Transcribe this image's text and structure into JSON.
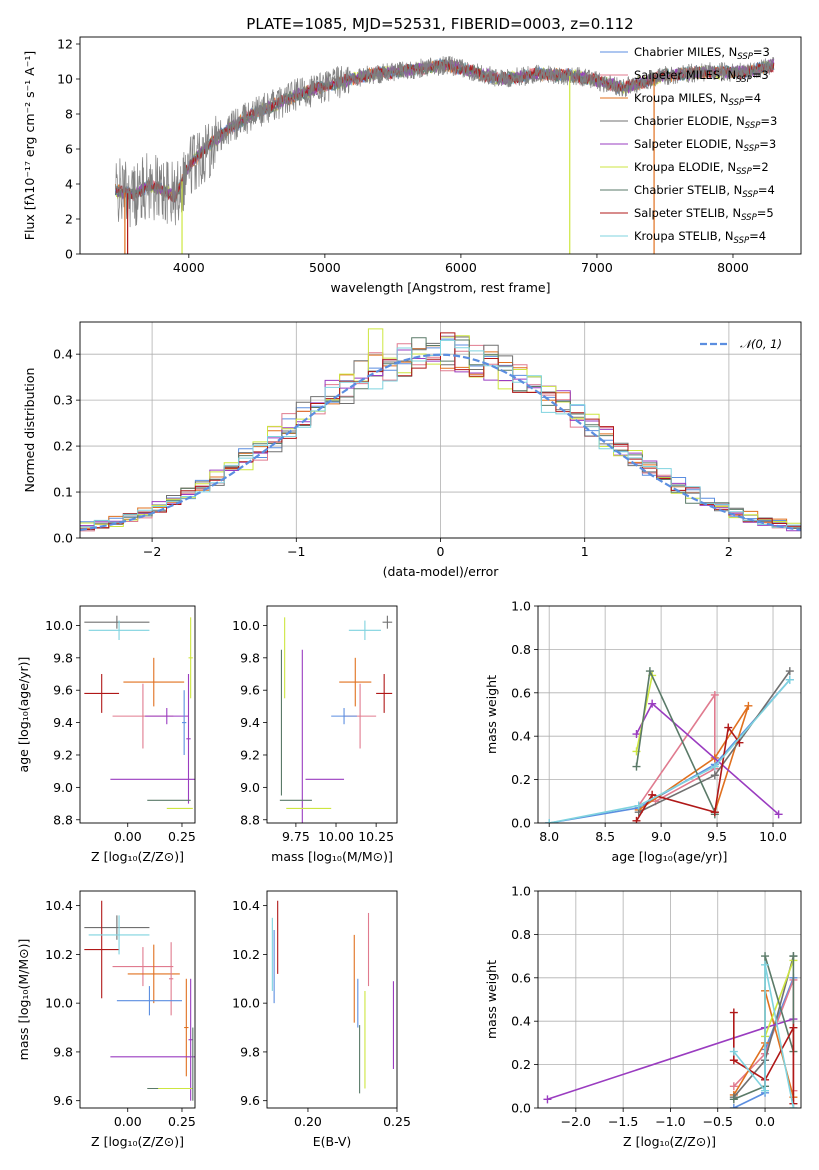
{
  "colors": {
    "chabrier_miles": "#5b8ee0",
    "salpeter_miles": "#e07b8f",
    "kroupa_miles": "#e0701f",
    "chabrier_elodie": "#707070",
    "salpeter_elodie": "#9a3cc0",
    "kroupa_elodie": "#cde640",
    "chabrier_stelib": "#5a7a68",
    "salpeter_stelib": "#b01818",
    "kroupa_stelib": "#7fd3df",
    "grid": "#b0b0b0",
    "normal": "#5b8ee0"
  },
  "chart_data": [
    {
      "id": "spectrum",
      "type": "line",
      "title": "PLATE=1085, MJD=52531, FIBERID=0003, z=0.112",
      "xlabel": "wavelength [Angstrom, rest frame]",
      "ylabel": "Flux [fλ10⁻¹⁷ erg cm⁻² s⁻¹ A⁻¹]",
      "xlim": [
        3200,
        8500
      ],
      "ylim": [
        0,
        12.4
      ],
      "xticks": [
        4000,
        5000,
        6000,
        7000,
        8000
      ],
      "yticks": [
        0,
        2,
        4,
        6,
        8,
        10,
        12
      ],
      "continuum": {
        "x": [
          3460,
          3600,
          3700,
          3800,
          3900,
          4000,
          4100,
          4300,
          4500,
          4800,
          5000,
          5300,
          5600,
          5900,
          6100,
          6300,
          6600,
          6900,
          7200,
          7500,
          7800,
          8100,
          8300
        ],
        "y": [
          3.6,
          3.4,
          3.9,
          3.7,
          3.3,
          5.0,
          5.9,
          7.2,
          8.1,
          9.1,
          9.6,
          10.2,
          10.5,
          10.8,
          10.4,
          10.0,
          10.3,
          10.1,
          9.5,
          10.2,
          10.4,
          10.4,
          10.8
        ]
      },
      "legend": [
        {
          "name": "Chabrier MILES, N",
          "sub": "SSP",
          "n": "=3"
        },
        {
          "name": "Salpeter MILES, N",
          "sub": "SSP",
          "n": "=3"
        },
        {
          "name": "Kroupa MILES, N",
          "sub": "SSP",
          "n": "=4"
        },
        {
          "name": "Chabrier ELODIE, N",
          "sub": "SSP",
          "n": "=3"
        },
        {
          "name": "Salpeter ELODIE, N",
          "sub": "SSP",
          "n": "=3"
        },
        {
          "name": "Kroupa ELODIE, N",
          "sub": "SSP",
          "n": "=2"
        },
        {
          "name": "Chabrier STELIB, N",
          "sub": "SSP",
          "n": "=4"
        },
        {
          "name": "Salpeter STELIB, N",
          "sub": "SSP",
          "n": "=5"
        },
        {
          "name": "Kroupa STELIB, N",
          "sub": "SSP",
          "n": "=4"
        }
      ]
    },
    {
      "id": "residuals",
      "type": "line",
      "xlabel": "(data-model)/error",
      "ylabel": "Normed distribution",
      "xlim": [
        -2.5,
        2.5
      ],
      "ylim": [
        0,
        0.47
      ],
      "xticks": [
        -2,
        -1,
        0,
        1,
        2
      ],
      "yticks": [
        0.0,
        0.1,
        0.2,
        0.3,
        0.4
      ],
      "legend_label": "𝒩(0, 1)",
      "legend_position": "top-right",
      "grid": true
    },
    {
      "id": "age_vs_z",
      "type": "scatter",
      "xlabel": "Z [log₁₀(Z/Z⊙)]",
      "ylabel": "age  [log₁₀(age/yr)]",
      "xlim": [
        -0.22,
        0.31
      ],
      "ylim": [
        8.78,
        10.12
      ],
      "xticks": [
        0.0,
        0.25
      ],
      "yticks": [
        8.8,
        9.0,
        9.2,
        9.4,
        9.6,
        9.8,
        10.0
      ],
      "points": [
        {
          "x": -0.05,
          "y": 10.02,
          "ex": 0.15,
          "ey": 0.04,
          "c": "chabrier_elodie"
        },
        {
          "x": -0.04,
          "y": 9.97,
          "ex": 0.14,
          "ey": 0.06,
          "c": "kroupa_stelib"
        },
        {
          "x": 0.12,
          "y": 9.65,
          "ex": 0.14,
          "ey": 0.15,
          "c": "kroupa_miles"
        },
        {
          "x": -0.12,
          "y": 9.58,
          "ex": 0.08,
          "ey": 0.12,
          "c": "salpeter_stelib"
        },
        {
          "x": 0.07,
          "y": 9.44,
          "ex": 0.14,
          "ey": 0.2,
          "c": "salpeter_miles"
        },
        {
          "x": 0.18,
          "y": 9.44,
          "ex": 0.1,
          "ey": 0.05,
          "c": "salpeter_elodie"
        },
        {
          "x": 0.29,
          "y": 9.8,
          "ex": 0.01,
          "ey": 0.25,
          "c": "kroupa_elodie"
        },
        {
          "x": 0.26,
          "y": 9.4,
          "ex": 0.01,
          "ey": 0.2,
          "c": "chabrier_miles"
        },
        {
          "x": 0.28,
          "y": 9.3,
          "ex": 0.01,
          "ey": 0.4,
          "c": "salpeter_elodie"
        },
        {
          "x": 0.12,
          "y": 9.05,
          "ex": 0.2,
          "ey": 0.0,
          "c": "salpeter_elodie"
        },
        {
          "x": 0.19,
          "y": 8.92,
          "ex": 0.1,
          "ey": 0.0,
          "c": "chabrier_stelib"
        },
        {
          "x": 0.24,
          "y": 8.87,
          "ex": 0.06,
          "ey": 0.0,
          "c": "kroupa_elodie"
        }
      ]
    },
    {
      "id": "age_vs_mass",
      "type": "scatter",
      "xlabel": "mass [log₁₀(M/M⊙)]",
      "xlim": [
        9.57,
        10.38
      ],
      "ylim": [
        8.78,
        10.12
      ],
      "xticks": [
        9.75,
        10.0,
        10.25
      ],
      "xticklabels": [
        "9.75",
        "10.00",
        "10.25"
      ],
      "yticks": [
        8.8,
        9.0,
        9.2,
        9.4,
        9.6,
        9.8,
        10.0
      ],
      "points": [
        {
          "x": 10.32,
          "y": 10.02,
          "ex": 0.03,
          "ey": 0.04,
          "c": "chabrier_elodie"
        },
        {
          "x": 10.18,
          "y": 9.97,
          "ex": 0.1,
          "ey": 0.06,
          "c": "kroupa_stelib"
        },
        {
          "x": 10.12,
          "y": 9.65,
          "ex": 0.1,
          "ey": 0.15,
          "c": "kroupa_miles"
        },
        {
          "x": 10.3,
          "y": 9.58,
          "ex": 0.05,
          "ey": 0.12,
          "c": "salpeter_stelib"
        },
        {
          "x": 10.15,
          "y": 9.44,
          "ex": 0.1,
          "ey": 0.2,
          "c": "salpeter_miles"
        },
        {
          "x": 10.05,
          "y": 9.44,
          "ex": 0.08,
          "ey": 0.05,
          "c": "chabrier_miles"
        },
        {
          "x": 9.68,
          "y": 9.8,
          "ex": 0.0,
          "ey": 0.25,
          "c": "kroupa_elodie"
        },
        {
          "x": 9.66,
          "y": 9.4,
          "ex": 0.0,
          "ey": 0.45,
          "c": "chabrier_stelib"
        },
        {
          "x": 9.79,
          "y": 9.3,
          "ex": 0.0,
          "ey": 0.55,
          "c": "salpeter_elodie"
        },
        {
          "x": 9.93,
          "y": 9.05,
          "ex": 0.12,
          "ey": 0.0,
          "c": "salpeter_elodie"
        },
        {
          "x": 9.75,
          "y": 8.92,
          "ex": 0.1,
          "ey": 0.0,
          "c": "chabrier_stelib"
        },
        {
          "x": 9.83,
          "y": 8.87,
          "ex": 0.14,
          "ey": 0.0,
          "c": "kroupa_elodie"
        }
      ]
    },
    {
      "id": "weight_vs_age",
      "type": "line",
      "xlabel": "age  [log₁₀(age/yr)]",
      "ylabel": "mass weight",
      "xlim": [
        7.9,
        10.25
      ],
      "ylim": [
        0,
        1.0
      ],
      "xticks": [
        8.0,
        8.5,
        9.0,
        9.5,
        10.0
      ],
      "yticks": [
        0.0,
        0.2,
        0.4,
        0.6,
        0.8,
        1.0
      ],
      "series": [
        {
          "c": "chabrier_miles",
          "x": [
            8.0,
            8.8,
            9.48,
            10.15
          ],
          "y": [
            0.0,
            0.07,
            0.27,
            0.66
          ]
        },
        {
          "c": "salpeter_miles",
          "x": [
            8.8,
            9.48,
            9.48,
            8.95
          ],
          "y": [
            0.08,
            0.59,
            0.25,
            0.1
          ]
        },
        {
          "c": "kroupa_miles",
          "x": [
            8.8,
            9.48,
            9.78,
            9.48
          ],
          "y": [
            0.06,
            0.3,
            0.54,
            0.05
          ]
        },
        {
          "c": "chabrier_elodie",
          "x": [
            8.8,
            9.48,
            10.15
          ],
          "y": [
            0.05,
            0.22,
            0.7
          ]
        },
        {
          "c": "salpeter_elodie",
          "x": [
            8.78,
            8.92,
            10.05
          ],
          "y": [
            0.41,
            0.55,
            0.04
          ]
        },
        {
          "c": "kroupa_elodie",
          "x": [
            8.78,
            8.92
          ],
          "y": [
            0.33,
            0.68
          ]
        },
        {
          "c": "chabrier_stelib",
          "x": [
            8.78,
            8.9,
            9.48,
            9.48
          ],
          "y": [
            0.26,
            0.7,
            0.05,
            0.04
          ]
        },
        {
          "c": "salpeter_stelib",
          "x": [
            8.78,
            8.92,
            9.48,
            9.6,
            9.7
          ],
          "y": [
            0.01,
            0.13,
            0.05,
            0.44,
            0.37
          ]
        },
        {
          "c": "kroupa_stelib",
          "x": [
            8.0,
            8.8,
            9.48,
            10.15
          ],
          "y": [
            0.0,
            0.08,
            0.26,
            0.66
          ]
        }
      ]
    },
    {
      "id": "mass_vs_z",
      "type": "scatter",
      "xlabel": "Z [log₁₀(Z/Z⊙)]",
      "ylabel": "mass [log₁₀(M/M⊙)]",
      "xlim": [
        -0.22,
        0.31
      ],
      "ylim": [
        9.57,
        10.46
      ],
      "xticks": [
        0.0,
        0.25
      ],
      "yticks": [
        9.6,
        9.8,
        10.0,
        10.2,
        10.4
      ],
      "points": [
        {
          "x": -0.05,
          "y": 10.31,
          "ex": 0.15,
          "ey": 0.05,
          "c": "chabrier_elodie"
        },
        {
          "x": -0.12,
          "y": 10.22,
          "ex": 0.08,
          "ey": 0.2,
          "c": "salpeter_stelib"
        },
        {
          "x": -0.04,
          "y": 10.28,
          "ex": 0.14,
          "ey": 0.08,
          "c": "kroupa_stelib"
        },
        {
          "x": 0.07,
          "y": 10.15,
          "ex": 0.14,
          "ey": 0.08,
          "c": "salpeter_miles"
        },
        {
          "x": 0.12,
          "y": 10.12,
          "ex": 0.12,
          "ey": 0.12,
          "c": "kroupa_miles"
        },
        {
          "x": 0.2,
          "y": 10.1,
          "ex": 0.01,
          "ey": 0.15,
          "c": "salpeter_miles"
        },
        {
          "x": 0.1,
          "y": 10.01,
          "ex": 0.15,
          "ey": 0.06,
          "c": "chabrier_miles"
        },
        {
          "x": 0.29,
          "y": 9.85,
          "ex": 0.01,
          "ey": 0.25,
          "c": "salpeter_elodie"
        },
        {
          "x": 0.27,
          "y": 9.9,
          "ex": 0.01,
          "ey": 0.2,
          "c": "kroupa_miles"
        },
        {
          "x": 0.12,
          "y": 9.78,
          "ex": 0.2,
          "ey": 0.0,
          "c": "salpeter_elodie"
        },
        {
          "x": 0.19,
          "y": 9.65,
          "ex": 0.1,
          "ey": 0.0,
          "c": "chabrier_stelib"
        },
        {
          "x": 0.22,
          "y": 9.65,
          "ex": 0.08,
          "ey": 0.0,
          "c": "kroupa_elodie"
        },
        {
          "x": 0.3,
          "y": 9.75,
          "ex": 0.0,
          "ey": 0.15,
          "c": "chabrier_stelib"
        }
      ]
    },
    {
      "id": "mass_vs_ebv",
      "type": "scatter",
      "xlabel": "E(B-V)",
      "xlim": [
        0.177,
        0.25
      ],
      "ylim": [
        9.57,
        10.46
      ],
      "xticks": [
        0.2,
        0.25
      ],
      "xticklabels": [
        "0.20",
        "0.25"
      ],
      "yticks": [
        9.6,
        9.8,
        10.0,
        10.2,
        10.4
      ],
      "points": [
        {
          "x": 0.18,
          "y": 10.2,
          "ex": 0.0,
          "ey": 0.15,
          "c": "kroupa_stelib"
        },
        {
          "x": 0.183,
          "y": 10.27,
          "ex": 0.0,
          "ey": 0.15,
          "c": "salpeter_stelib"
        },
        {
          "x": 0.181,
          "y": 10.15,
          "ex": 0.0,
          "ey": 0.15,
          "c": "chabrier_miles"
        },
        {
          "x": 0.226,
          "y": 10.1,
          "ex": 0.0,
          "ey": 0.18,
          "c": "kroupa_miles"
        },
        {
          "x": 0.228,
          "y": 10.0,
          "ex": 0.0,
          "ey": 0.1,
          "c": "chabrier_miles"
        },
        {
          "x": 0.234,
          "y": 10.22,
          "ex": 0.0,
          "ey": 0.15,
          "c": "salpeter_miles"
        },
        {
          "x": 0.229,
          "y": 9.77,
          "ex": 0.0,
          "ey": 0.14,
          "c": "chabrier_stelib"
        },
        {
          "x": 0.232,
          "y": 9.85,
          "ex": 0.0,
          "ey": 0.2,
          "c": "kroupa_elodie"
        },
        {
          "x": 0.248,
          "y": 9.91,
          "ex": 0.0,
          "ey": 0.18,
          "c": "salpeter_elodie"
        }
      ]
    },
    {
      "id": "weight_vs_z",
      "type": "line",
      "xlabel": "Z [log₁₀(Z/Z⊙)]",
      "ylabel": "mass weight",
      "xlim": [
        -2.4,
        0.38
      ],
      "ylim": [
        0,
        1.0
      ],
      "xticks": [
        -2.0,
        -1.5,
        -1.0,
        -0.5,
        0.0
      ],
      "yticks": [
        0.0,
        0.2,
        0.4,
        0.6,
        0.8,
        1.0
      ],
      "series": [
        {
          "c": "chabrier_miles",
          "x": [
            -0.33,
            0.0,
            0.0,
            0.3
          ],
          "y": [
            0.0,
            0.07,
            0.27,
            0.6
          ]
        },
        {
          "c": "salpeter_miles",
          "x": [
            -0.33,
            0.0,
            0.3,
            0.3
          ],
          "y": [
            0.1,
            0.25,
            0.59,
            0.08
          ]
        },
        {
          "c": "kroupa_miles",
          "x": [
            -0.33,
            0.0,
            0.0,
            0.3
          ],
          "y": [
            0.06,
            0.3,
            0.54,
            0.05
          ]
        },
        {
          "c": "chabrier_elodie",
          "x": [
            -0.33,
            0.0,
            0.3
          ],
          "y": [
            0.05,
            0.22,
            0.7
          ]
        },
        {
          "c": "salpeter_elodie",
          "x": [
            -2.3,
            0.0,
            0.3
          ],
          "y": [
            0.04,
            0.37,
            0.41
          ]
        },
        {
          "c": "kroupa_elodie",
          "x": [
            0.0,
            0.3
          ],
          "y": [
            0.33,
            0.68
          ]
        },
        {
          "c": "chabrier_stelib",
          "x": [
            -0.33,
            0.0,
            0.0,
            0.3,
            0.3
          ],
          "y": [
            0.04,
            0.1,
            0.7,
            0.26,
            0.7
          ]
        },
        {
          "c": "salpeter_stelib",
          "x": [
            -0.33,
            -0.33,
            0.0,
            0.3,
            0.3
          ],
          "y": [
            0.44,
            0.22,
            0.13,
            0.37,
            0.02
          ]
        },
        {
          "c": "kroupa_stelib",
          "x": [
            -0.33,
            0.0,
            0.0,
            0.3
          ],
          "y": [
            0.26,
            0.08,
            0.66,
            0.0
          ]
        }
      ]
    }
  ]
}
